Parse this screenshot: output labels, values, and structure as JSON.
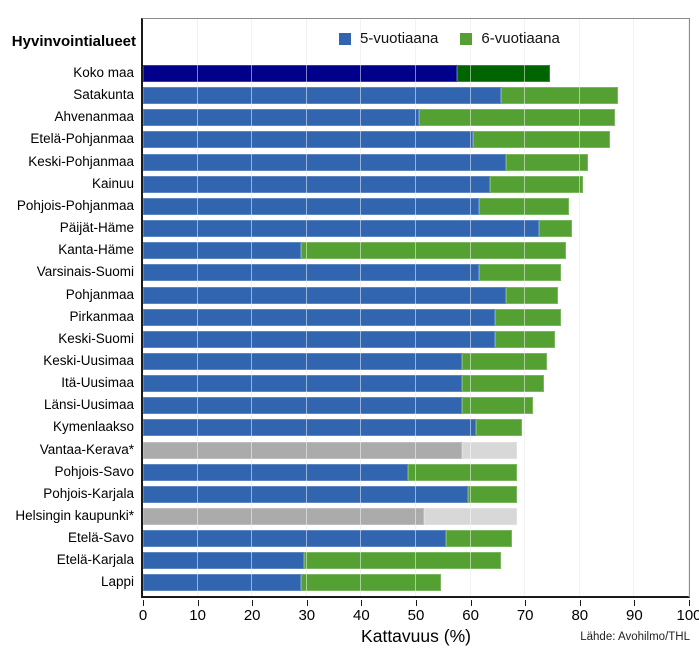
{
  "chart_data": {
    "type": "bar",
    "orientation": "horizontal-stacked",
    "title": "",
    "row_header": "Hyvinvointialueet",
    "xlabel": "Kattavuus (%)",
    "xlim": [
      0,
      100
    ],
    "x_ticks": [
      0,
      10,
      20,
      30,
      40,
      50,
      60,
      70,
      80,
      90,
      100
    ],
    "legend": [
      "5-vuotiaana",
      "6-vuotiaana"
    ],
    "legend_position": "top-inside",
    "grid": true,
    "source": "Lähde: Avohilmo/THL",
    "series_names": [
      "5-vuotiaana",
      "6-vuotiaana"
    ],
    "rows": [
      {
        "label": "Koko maa",
        "v5": 57.5,
        "v6": 17.0,
        "total": 74.5,
        "style": "highlight"
      },
      {
        "label": "Satakunta",
        "v5": 65.5,
        "v6": 21.5,
        "total": 87.0,
        "style": "normal"
      },
      {
        "label": "Ahvenanmaa",
        "v5": 50.5,
        "v6": 36.0,
        "total": 86.5,
        "style": "normal"
      },
      {
        "label": "Etelä-Pohjanmaa",
        "v5": 60.5,
        "v6": 25.0,
        "total": 85.5,
        "style": "normal"
      },
      {
        "label": "Keski-Pohjanmaa",
        "v5": 66.5,
        "v6": 15.0,
        "total": 81.5,
        "style": "normal"
      },
      {
        "label": "Kainuu",
        "v5": 63.5,
        "v6": 17.0,
        "total": 80.5,
        "style": "normal"
      },
      {
        "label": "Pohjois-Pohjanmaa",
        "v5": 61.5,
        "v6": 16.5,
        "total": 78.0,
        "style": "normal"
      },
      {
        "label": "Päijät-Häme",
        "v5": 72.5,
        "v6": 6.0,
        "total": 78.5,
        "style": "normal"
      },
      {
        "label": "Kanta-Häme",
        "v5": 29.0,
        "v6": 48.5,
        "total": 77.5,
        "style": "normal"
      },
      {
        "label": "Varsinais-Suomi",
        "v5": 61.5,
        "v6": 15.0,
        "total": 76.5,
        "style": "normal"
      },
      {
        "label": "Pohjanmaa",
        "v5": 66.5,
        "v6": 9.5,
        "total": 76.0,
        "style": "normal"
      },
      {
        "label": "Pirkanmaa",
        "v5": 64.5,
        "v6": 12.0,
        "total": 76.5,
        "style": "normal"
      },
      {
        "label": "Keski-Suomi",
        "v5": 64.5,
        "v6": 11.0,
        "total": 75.5,
        "style": "normal"
      },
      {
        "label": "Keski-Uusimaa",
        "v5": 58.5,
        "v6": 15.5,
        "total": 74.0,
        "style": "normal"
      },
      {
        "label": "Itä-Uusimaa",
        "v5": 58.5,
        "v6": 15.0,
        "total": 73.5,
        "style": "normal"
      },
      {
        "label": "Länsi-Uusimaa",
        "v5": 58.5,
        "v6": 13.0,
        "total": 71.5,
        "style": "normal"
      },
      {
        "label": "Kymenlaakso",
        "v5": 61.0,
        "v6": 8.5,
        "total": 69.5,
        "style": "normal"
      },
      {
        "label": "Vantaa-Kerava*",
        "v5": 58.5,
        "v6": 10.0,
        "total": 68.5,
        "style": "muted"
      },
      {
        "label": "Pohjois-Savo",
        "v5": 48.5,
        "v6": 20.0,
        "total": 68.5,
        "style": "normal"
      },
      {
        "label": "Pohjois-Karjala",
        "v5": 59.5,
        "v6": 9.0,
        "total": 68.5,
        "style": "normal"
      },
      {
        "label": "Helsingin kaupunki*",
        "v5": 51.5,
        "v6": 17.0,
        "total": 68.5,
        "style": "muted"
      },
      {
        "label": "Etelä-Savo",
        "v5": 55.5,
        "v6": 12.0,
        "total": 67.5,
        "style": "normal"
      },
      {
        "label": "Etelä-Karjala",
        "v5": 29.5,
        "v6": 36.0,
        "total": 65.5,
        "style": "normal"
      },
      {
        "label": "Lappi",
        "v5": 29.0,
        "v6": 25.5,
        "total": 54.5,
        "style": "normal"
      }
    ]
  },
  "colors": {
    "bar_5yo": "#3165B0",
    "bar_6yo": "#55A032",
    "bar_5yo_highlight": "#00008B",
    "bar_6yo_highlight": "#006400",
    "bar_5yo_muted": "#ABABAB",
    "bar_6yo_muted": "#D8D8D8",
    "gridline": "#E4E4E4",
    "axis": "#1A1A1A"
  }
}
